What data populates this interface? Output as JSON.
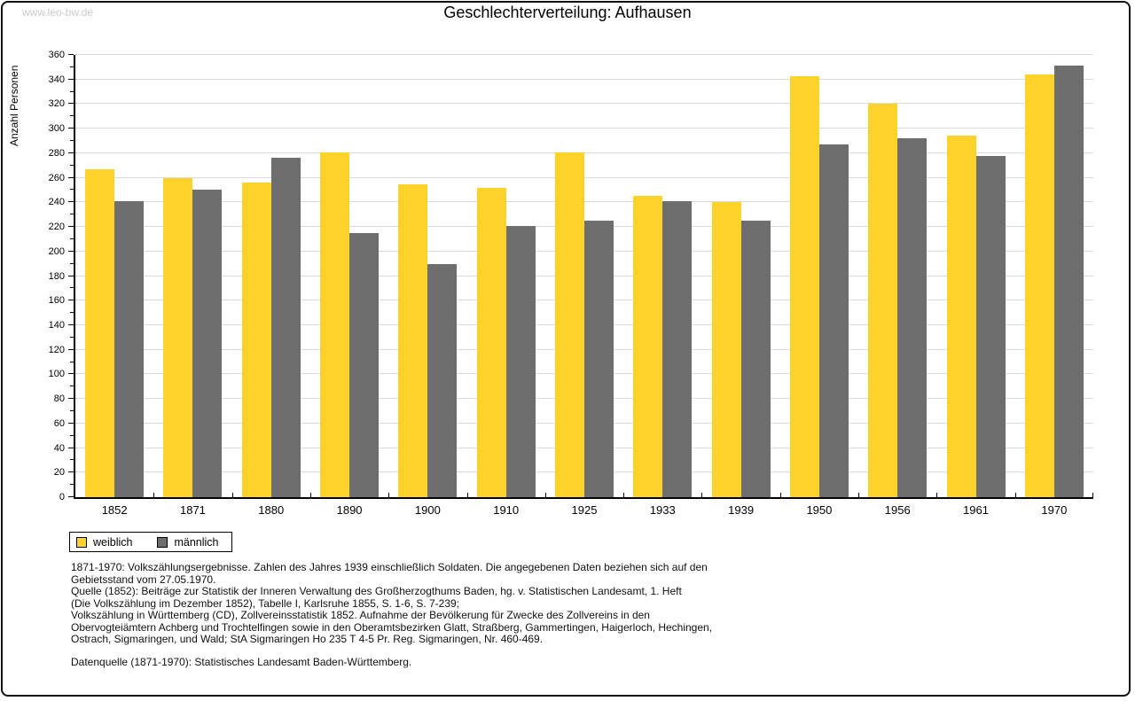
{
  "page": {
    "watermark": "www.leo-bw.de",
    "title": "Geschlechterverteilung: Aufhausen"
  },
  "chart_data": {
    "type": "bar",
    "title": "Geschlechterverteilung: Aufhausen",
    "xlabel": "",
    "ylabel": "Anzahl Personen",
    "ylim": [
      0,
      360
    ],
    "ytick_step": 20,
    "yminor_step": 10,
    "grid": true,
    "legend_position": "bottom-left",
    "categories": [
      "1852",
      "1871",
      "1880",
      "1890",
      "1900",
      "1910",
      "1925",
      "1933",
      "1939",
      "1950",
      "1956",
      "1961",
      "1970"
    ],
    "series": [
      {
        "name": "weiblich",
        "color": "#FCD22B",
        "values": [
          267,
          260,
          256,
          281,
          255,
          252,
          281,
          245,
          240,
          343,
          320,
          294,
          344
        ]
      },
      {
        "name": "männlich",
        "color": "#6E6E6E",
        "values": [
          241,
          250,
          276,
          215,
          190,
          221,
          225,
          241,
          225,
          287,
          292,
          278,
          351
        ]
      }
    ],
    "colors": {
      "grid": "#DADADA",
      "axis": "#000000"
    }
  },
  "footnotes": {
    "lines": [
      "1871-1970: Volkszählungsergebnisse. Zahlen des Jahres 1939 einschließlich Soldaten. Die angegebenen Daten beziehen sich auf den",
      "Gebietsstand vom 27.05.1970.",
      "Quelle (1852): Beiträge zur Statistik der Inneren Verwaltung des Großherzogthums Baden, hg. v. Statistischen Landesamt, 1. Heft",
      "(Die Volkszählung im Dezember 1852), Tabelle I, Karlsruhe 1855, S. 1-6, S. 7-239;",
      "Volkszählung in Württemberg (CD), Zollvereinsstatistik 1852. Aufnahme der Bevölkerung für Zwecke des Zollvereins in den",
      "Obervogteiämtern Achberg und Trochtelfingen sowie in den Oberamtsbezirken Glatt, Straßberg, Gammertingen, Haigerloch, Hechingen,",
      "Ostrach, Sigmaringen, und Wald; StA Sigmaringen Ho 235 T 4-5 Pr. Reg. Sigmaringen, Nr. 460-469."
    ],
    "datasource": "Datenquelle (1871-1970): Statistisches Landesamt Baden-Württemberg."
  }
}
